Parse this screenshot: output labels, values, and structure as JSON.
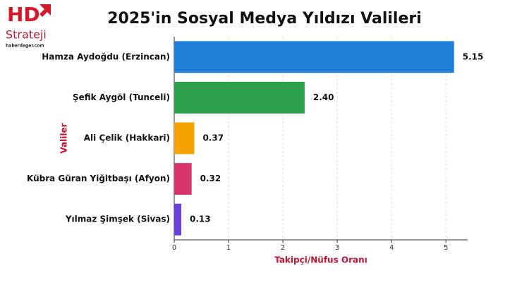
{
  "logo": {
    "brand": "HD",
    "name": "Strateji",
    "site": "haberdeger.com"
  },
  "chart_data": {
    "type": "barh",
    "title": "2025'in Sosyal Medya Yıldızı Valileri",
    "x_label": "Takipçi/Nüfus Oranı",
    "y_label": "Valiler",
    "categories": [
      "Hamza Aydoğdu (Erzincan)",
      "Şefik Aygöl (Tunceli)",
      "Ali Çelik (Hakkari)",
      "Kübra Güran Yiğitbaşı (Afyon)",
      "Yılmaz Şimşek (Sivas)"
    ],
    "values": [
      5.15,
      2.4,
      0.37,
      0.32,
      0.13
    ],
    "value_labels": [
      "5.15",
      "2.40",
      "0.37",
      "0.32",
      "0.13"
    ],
    "colors": [
      "#1f7fd8",
      "#2ca04a",
      "#f5a300",
      "#d6336c",
      "#6a40e0"
    ],
    "xlim": [
      0,
      5.4
    ],
    "xticks": [
      0,
      1,
      2,
      3,
      4,
      5
    ],
    "grid": true
  }
}
